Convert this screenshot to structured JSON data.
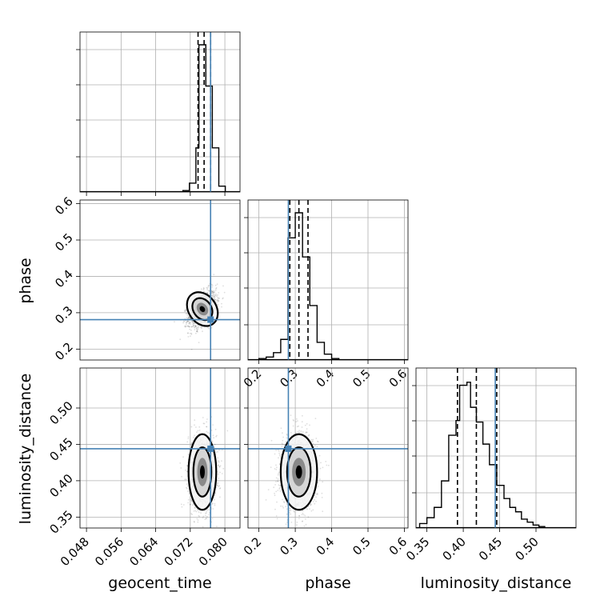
{
  "chart_data": {
    "type": "corner",
    "parameters": [
      "geocent_time",
      "phase",
      "luminosity_distance"
    ],
    "truth": {
      "geocent_time": 0.0767,
      "phase": 0.281,
      "luminosity_distance": 0.444
    },
    "truth_color": "#4682b4",
    "grid": true,
    "panels": [
      {
        "id": "hist-geocent_time",
        "type": "histogram",
        "x_param": "geocent_time",
        "xlim": [
          0.0465,
          0.0835
        ],
        "ylim": [
          0,
          1.0
        ],
        "quantile_lines": [
          0.0738,
          0.0752,
          0.0767
        ],
        "bins": [
          {
            "x0": 0.0703,
            "x1": 0.0718,
            "h": 0.01
          },
          {
            "x0": 0.0718,
            "x1": 0.0733,
            "h": 0.06
          },
          {
            "x0": 0.0733,
            "x1": 0.074,
            "h": 0.3
          },
          {
            "x0": 0.074,
            "x1": 0.0756,
            "h": 1.0
          },
          {
            "x0": 0.0756,
            "x1": 0.0771,
            "h": 0.72
          },
          {
            "x0": 0.0771,
            "x1": 0.0786,
            "h": 0.3
          },
          {
            "x0": 0.0786,
            "x1": 0.0801,
            "h": 0.04
          },
          {
            "x0": 0.0801,
            "x1": 0.0816,
            "h": 0.0
          }
        ],
        "xticks": [
          0.048,
          0.056,
          0.064,
          0.072,
          0.08
        ]
      },
      {
        "id": "scatter-geocent_time-phase",
        "type": "density",
        "x_param": "geocent_time",
        "y_param": "phase",
        "xlim": [
          0.0465,
          0.0835
        ],
        "ylim": [
          0.17,
          0.61
        ],
        "center": [
          0.0748,
          0.31
        ],
        "spread": [
          0.0016,
          0.025
        ],
        "yticks": [
          0.2,
          0.3,
          0.4,
          0.5,
          0.6
        ],
        "ytick_labels": [
          "0.2",
          "0.3",
          "0.4",
          "0.5",
          "0.6"
        ]
      },
      {
        "id": "hist-phase",
        "type": "histogram",
        "x_param": "phase",
        "xlim": [
          0.17,
          0.61
        ],
        "ylim": [
          0,
          1.0
        ],
        "quantile_lines": [
          0.285,
          0.31,
          0.335
        ],
        "bins": [
          {
            "x0": 0.2,
            "x1": 0.22,
            "h": 0.01
          },
          {
            "x0": 0.22,
            "x1": 0.24,
            "h": 0.02
          },
          {
            "x0": 0.24,
            "x1": 0.26,
            "h": 0.05
          },
          {
            "x0": 0.26,
            "x1": 0.28,
            "h": 0.14
          },
          {
            "x0": 0.28,
            "x1": 0.3,
            "h": 0.83
          },
          {
            "x0": 0.3,
            "x1": 0.32,
            "h": 1.0
          },
          {
            "x0": 0.32,
            "x1": 0.34,
            "h": 0.7
          },
          {
            "x0": 0.34,
            "x1": 0.36,
            "h": 0.37
          },
          {
            "x0": 0.36,
            "x1": 0.38,
            "h": 0.12
          },
          {
            "x0": 0.38,
            "x1": 0.4,
            "h": 0.04
          },
          {
            "x0": 0.4,
            "x1": 0.42,
            "h": 0.01
          }
        ],
        "xticks": [
          0.2,
          0.3,
          0.4,
          0.5,
          0.6
        ],
        "xtick_labels": [
          "0.2",
          "0.3",
          "0.4",
          "0.5",
          "0.6"
        ]
      },
      {
        "id": "scatter-geocent_time-luminosity_distance",
        "type": "density",
        "x_param": "geocent_time",
        "y_param": "luminosity_distance",
        "xlim": [
          0.0465,
          0.0835
        ],
        "ylim": [
          0.335,
          0.555
        ],
        "center": [
          0.0748,
          0.412
        ],
        "spread": [
          0.0016,
          0.026
        ],
        "xticks": [
          0.048,
          0.056,
          0.064,
          0.072,
          0.08
        ],
        "xtick_labels": [
          "0.048",
          "0.056",
          "0.064",
          "0.072",
          "0.080"
        ],
        "yticks": [
          0.35,
          0.4,
          0.45,
          0.5
        ],
        "ytick_labels": [
          "0.35",
          "0.40",
          "0.45",
          "0.50"
        ]
      },
      {
        "id": "scatter-phase-luminosity_distance",
        "type": "density",
        "x_param": "phase",
        "y_param": "luminosity_distance",
        "xlim": [
          0.17,
          0.61
        ],
        "ylim": [
          0.335,
          0.555
        ],
        "center": [
          0.31,
          0.412
        ],
        "spread": [
          0.025,
          0.026
        ],
        "xticks": [
          0.2,
          0.3,
          0.4,
          0.5,
          0.6
        ],
        "xtick_labels": [
          "0.2",
          "0.3",
          "0.4",
          "0.5",
          "0.6"
        ]
      },
      {
        "id": "hist-luminosity_distance",
        "type": "histogram",
        "x_param": "luminosity_distance",
        "xlim": [
          0.335,
          0.555
        ],
        "ylim": [
          0,
          1.0
        ],
        "quantile_lines": [
          0.392,
          0.418,
          0.446
        ],
        "bins": [
          {
            "x0": 0.34,
            "x1": 0.35,
            "h": 0.03
          },
          {
            "x0": 0.35,
            "x1": 0.36,
            "h": 0.07
          },
          {
            "x0": 0.36,
            "x1": 0.37,
            "h": 0.14
          },
          {
            "x0": 0.37,
            "x1": 0.38,
            "h": 0.32
          },
          {
            "x0": 0.38,
            "x1": 0.39,
            "h": 0.63
          },
          {
            "x0": 0.39,
            "x1": 0.395,
            "h": 0.73
          },
          {
            "x0": 0.395,
            "x1": 0.405,
            "h": 0.97
          },
          {
            "x0": 0.405,
            "x1": 0.41,
            "h": 0.99
          },
          {
            "x0": 0.41,
            "x1": 0.418,
            "h": 0.82
          },
          {
            "x0": 0.418,
            "x1": 0.427,
            "h": 0.72
          },
          {
            "x0": 0.427,
            "x1": 0.436,
            "h": 0.57
          },
          {
            "x0": 0.436,
            "x1": 0.446,
            "h": 0.43
          },
          {
            "x0": 0.446,
            "x1": 0.456,
            "h": 0.29
          },
          {
            "x0": 0.456,
            "x1": 0.464,
            "h": 0.2
          },
          {
            "x0": 0.464,
            "x1": 0.472,
            "h": 0.14
          },
          {
            "x0": 0.472,
            "x1": 0.48,
            "h": 0.11
          },
          {
            "x0": 0.48,
            "x1": 0.488,
            "h": 0.06
          },
          {
            "x0": 0.488,
            "x1": 0.496,
            "h": 0.04
          },
          {
            "x0": 0.496,
            "x1": 0.504,
            "h": 0.02
          },
          {
            "x0": 0.504,
            "x1": 0.512,
            "h": 0.01
          }
        ],
        "xticks": [
          0.35,
          0.4,
          0.45,
          0.5
        ],
        "xtick_labels": [
          "0.35",
          "0.40",
          "0.45",
          "0.50"
        ]
      }
    ],
    "xlabels": [
      "geocent_time",
      "phase",
      "luminosity_distance"
    ],
    "ylabels": [
      "phase",
      "luminosity_distance"
    ]
  }
}
